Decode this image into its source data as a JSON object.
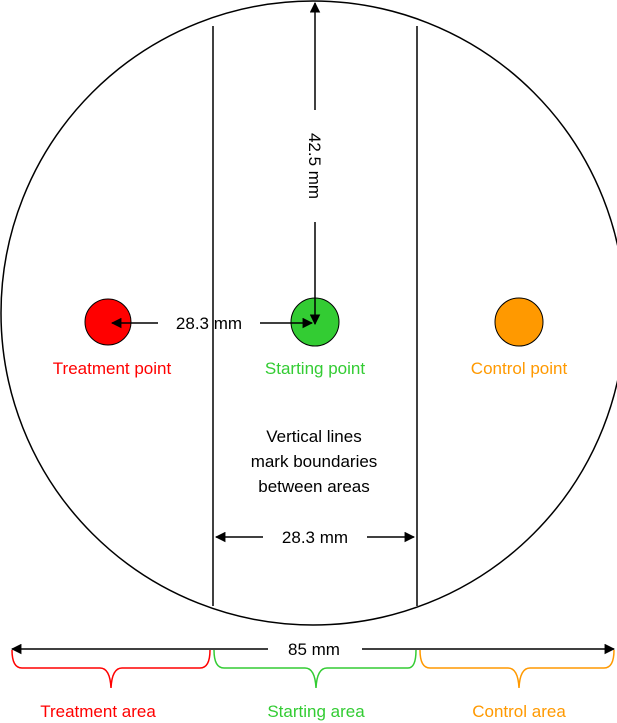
{
  "colors": {
    "treatment": "#ff0000",
    "starting": "#33cc33",
    "control": "#ff9900",
    "line": "#000000"
  },
  "points": {
    "treatment_label": "Treatment point",
    "starting_label": "Starting point",
    "control_label": "Control point"
  },
  "dimensions": {
    "vertical": "42.5 mm",
    "treatment_to_start": "28.3 mm",
    "area_width": "28.3 mm",
    "total_width": "85 mm"
  },
  "note": [
    "Vertical lines",
    "mark boundaries",
    "between areas"
  ],
  "areas": {
    "treatment": "Treatment area",
    "starting": "Starting area",
    "control": "Control area"
  }
}
